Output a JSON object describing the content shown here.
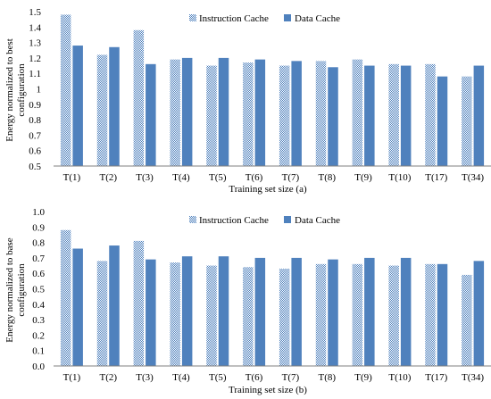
{
  "colors": {
    "data_cache": "#4f81bd",
    "instruction_cache_pattern": "#4f81bd",
    "axis": "#7f7f7f",
    "grid": "#d9d9d9"
  },
  "chart_data": [
    {
      "type": "bar",
      "categories": [
        "T(1)",
        "T(2)",
        "T(3)",
        "T(4)",
        "T(5)",
        "T(6)",
        "T(7)",
        "T(8)",
        "T(9)",
        "T(10)",
        "T(17)",
        "T(34)"
      ],
      "series": [
        {
          "name": "Instruction Cache",
          "values": [
            1.48,
            1.22,
            1.38,
            1.19,
            1.15,
            1.17,
            1.15,
            1.18,
            1.19,
            1.16,
            1.16,
            1.08
          ]
        },
        {
          "name": "Data Cache",
          "values": [
            1.28,
            1.27,
            1.16,
            1.2,
            1.2,
            1.19,
            1.18,
            1.14,
            1.15,
            1.15,
            1.08,
            1.15
          ]
        }
      ],
      "xlabel": "Training set size (a)",
      "ylabel": "Energy normalized to best configuration",
      "ylabel_lines": [
        "Energy normalized to best",
        "configuration"
      ],
      "yticks": [
        "0.5",
        "0.6",
        "0.7",
        "0.8",
        "0.9",
        "1",
        "1.1",
        "1.2",
        "1.3",
        "1.4",
        "1.5"
      ],
      "ylim": [
        0.5,
        1.5
      ],
      "ytick_step": 0.1,
      "grid": false,
      "legend": "top-center"
    },
    {
      "type": "bar",
      "categories": [
        "T(1)",
        "T(2)",
        "T(3)",
        "T(4)",
        "T(5)",
        "T(6)",
        "T(7)",
        "T(8)",
        "T(9)",
        "T(10)",
        "T(17)",
        "T(34)"
      ],
      "series": [
        {
          "name": "Instruction Cache",
          "values": [
            0.88,
            0.68,
            0.81,
            0.67,
            0.65,
            0.64,
            0.63,
            0.66,
            0.66,
            0.65,
            0.66,
            0.59
          ]
        },
        {
          "name": "Data Cache",
          "values": [
            0.76,
            0.78,
            0.69,
            0.71,
            0.71,
            0.7,
            0.7,
            0.69,
            0.7,
            0.7,
            0.66,
            0.68
          ]
        }
      ],
      "xlabel": "Training set size (b)",
      "ylabel": "Energy normalized to base configuration",
      "ylabel_lines": [
        "Energy normalized to base",
        "configuration"
      ],
      "yticks": [
        "0.0",
        "0.1",
        "0.2",
        "0.3",
        "0.4",
        "0.5",
        "0.6",
        "0.7",
        "0.8",
        "0.9",
        "1.0"
      ],
      "ylim": [
        0,
        1.0
      ],
      "ytick_step": 0.1,
      "grid": false,
      "legend": "top-center"
    }
  ]
}
